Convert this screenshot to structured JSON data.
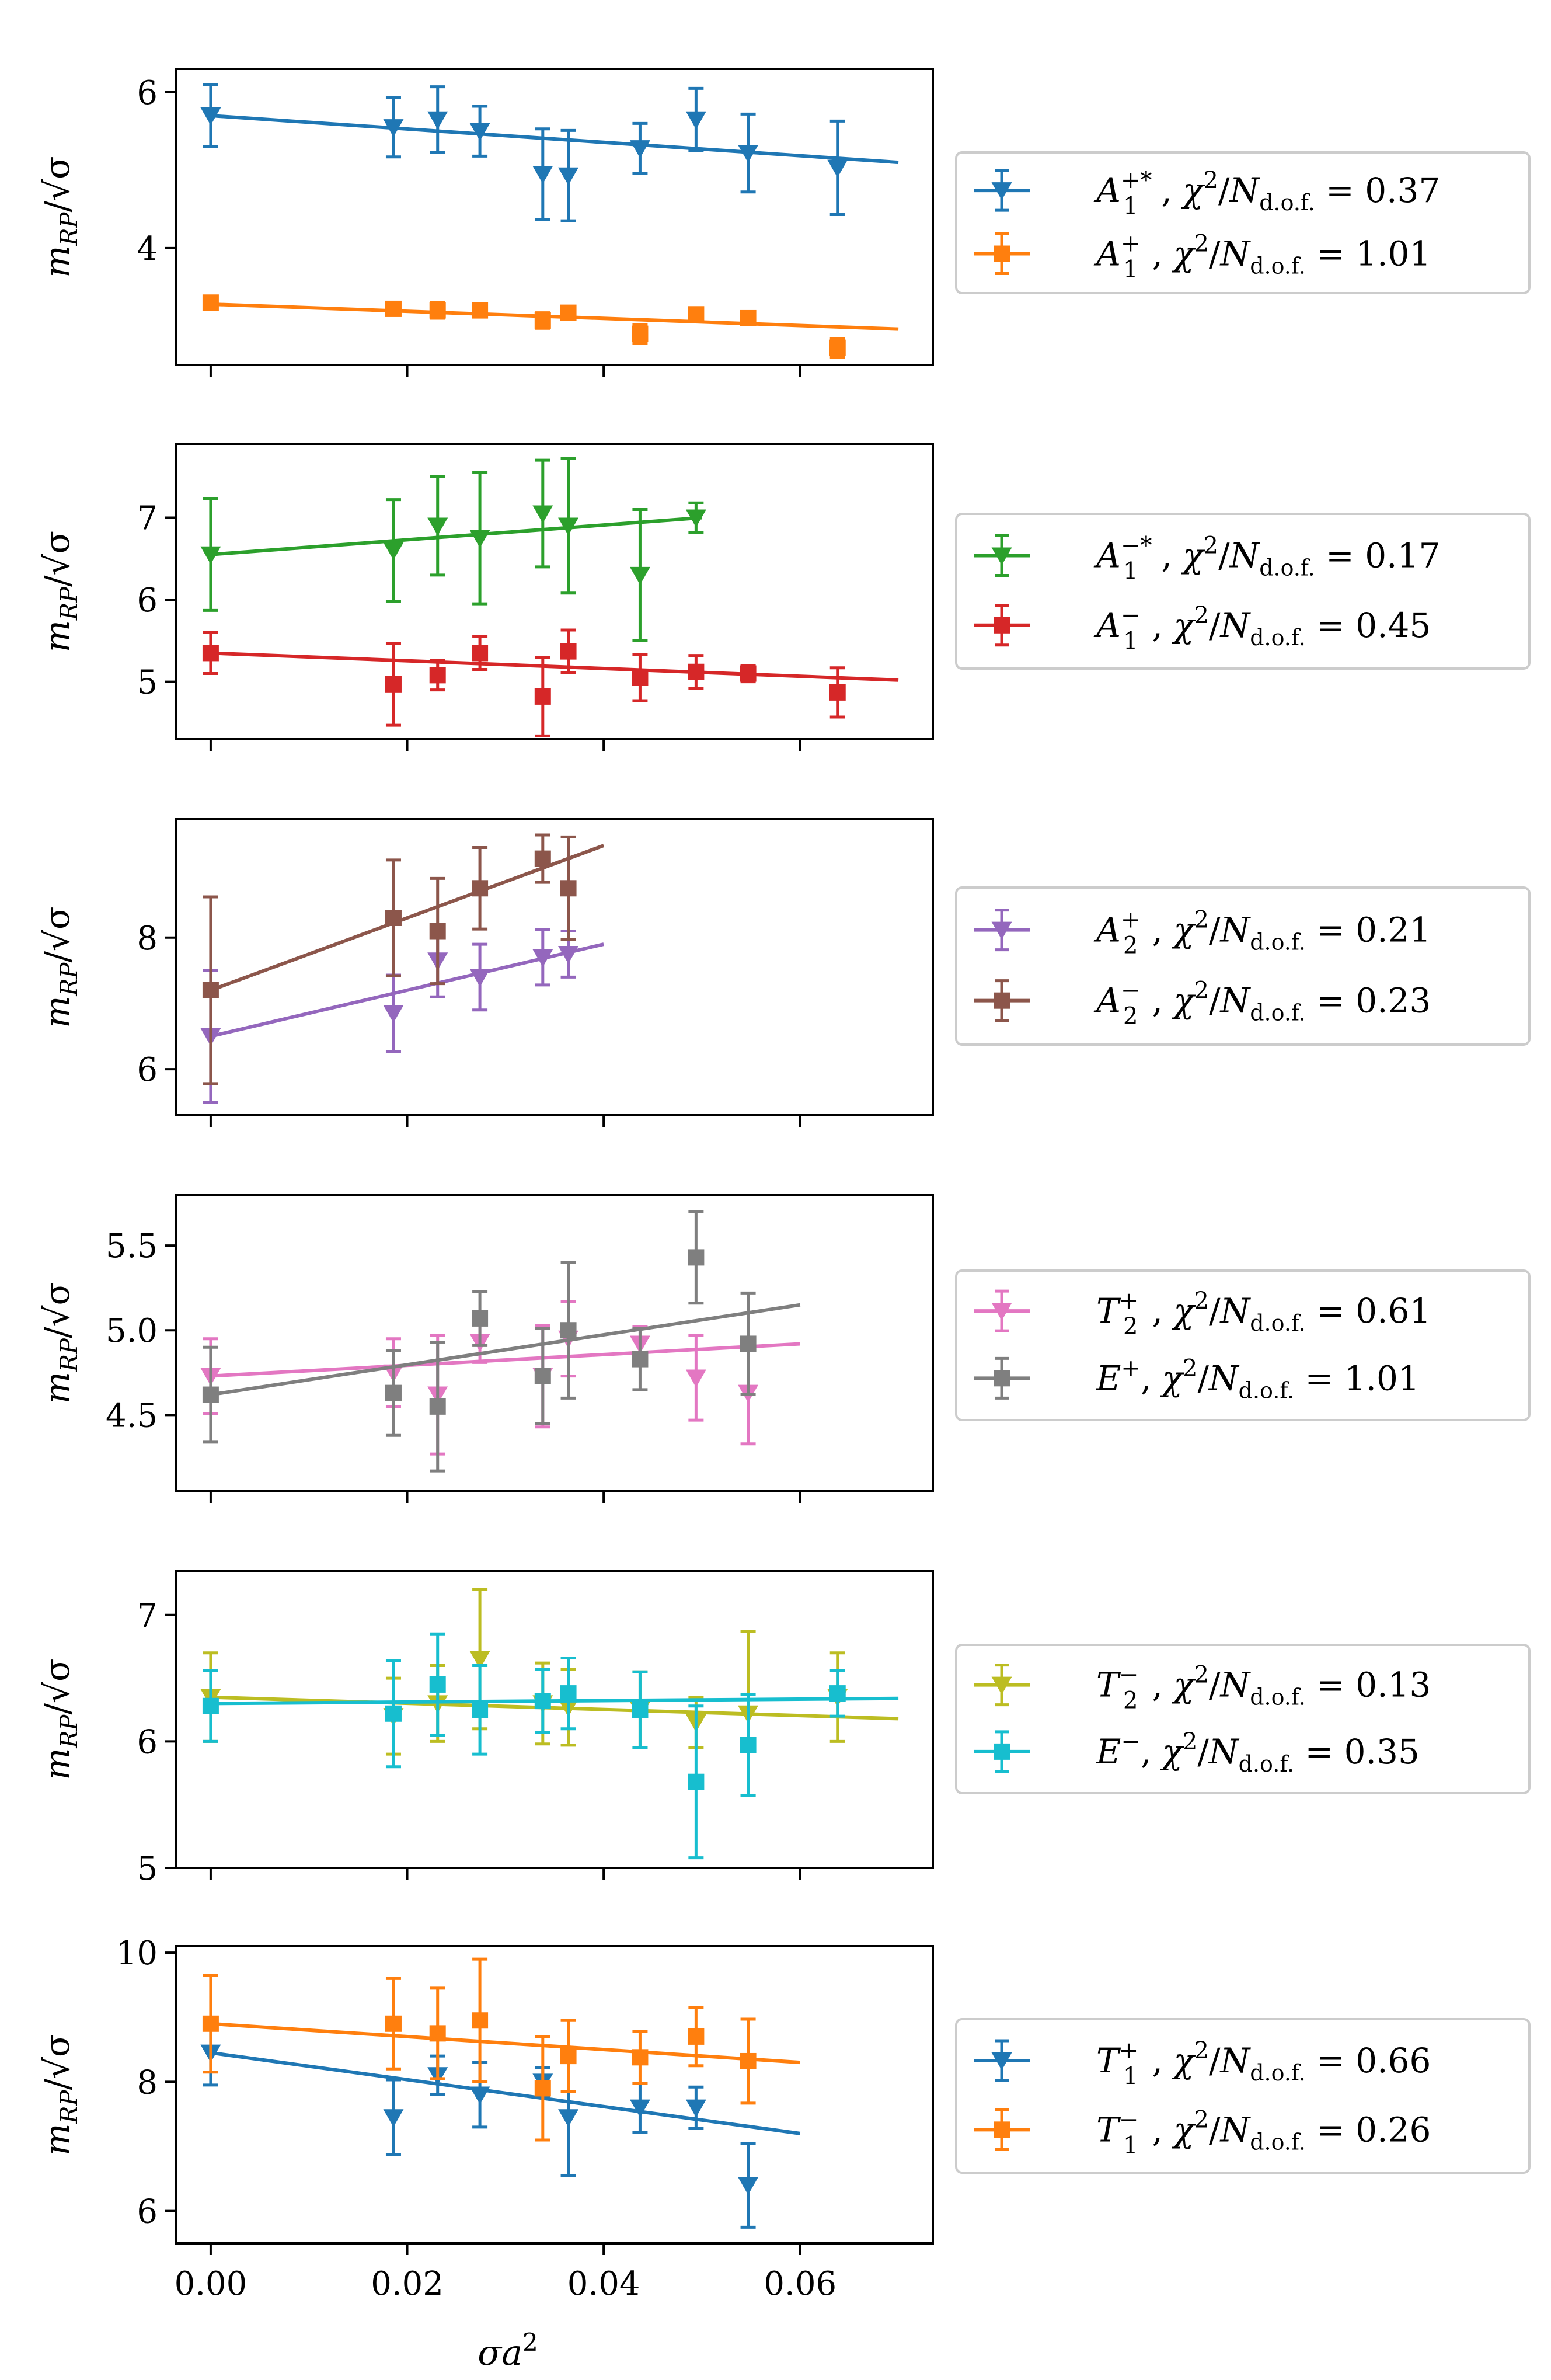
{
  "figure": {
    "xlabel": "σa²",
    "ylabel": "m_RP / √σ",
    "x_ticks": [
      0.0,
      0.02,
      0.04,
      0.06
    ],
    "x_tick_labels": [
      "0.00",
      "0.02",
      "0.04",
      "0.06"
    ]
  },
  "colors": {
    "blue": "#1f77b4",
    "orange": "#ff7f0e",
    "green": "#2ca02c",
    "red": "#d62728",
    "purple": "#9467bd",
    "brown": "#8c564b",
    "pink": "#e377c2",
    "gray": "#7f7f7f",
    "olive": "#bcbd22",
    "cyan": "#17becf"
  },
  "chart_data": [
    {
      "type": "scatter",
      "panel": 1,
      "xlim": [
        -0.0035,
        0.0735
      ],
      "ylim": [
        2.5,
        6.3
      ],
      "yticks": [
        4,
        6
      ],
      "ytick_labels": [
        "4",
        "6"
      ],
      "series": [
        {
          "name": "A1+*",
          "legend": {
            "base": "A",
            "sub": "1",
            "sup": "+*",
            "chi_value": "0.37"
          },
          "color": "#1f77b4",
          "marker": "triangle-down",
          "x": [
            0.0,
            0.0186,
            0.0231,
            0.0274,
            0.0338,
            0.0364,
            0.0437,
            0.0494,
            0.0547,
            0.0638
          ],
          "y": [
            5.7,
            5.55,
            5.65,
            5.5,
            4.95,
            4.93,
            5.28,
            5.65,
            5.22,
            5.03
          ],
          "err": [
            0.4,
            0.38,
            0.42,
            0.32,
            0.58,
            0.58,
            0.32,
            0.4,
            0.5,
            0.6
          ],
          "fit": {
            "x": [
              0.0,
              0.07
            ],
            "y": [
              5.7,
              5.1
            ]
          }
        },
        {
          "name": "A1+",
          "legend": {
            "base": "A",
            "sub": "1",
            "sup": "+",
            "chi_value": "1.01"
          },
          "color": "#ff7f0e",
          "marker": "square",
          "x": [
            0.0,
            0.0186,
            0.0231,
            0.0274,
            0.0338,
            0.0364,
            0.0437,
            0.0494,
            0.0547,
            0.0638
          ],
          "y": [
            3.3,
            3.22,
            3.2,
            3.2,
            3.07,
            3.17,
            2.9,
            3.15,
            3.1,
            2.72
          ],
          "err": [
            0.06,
            0.07,
            0.1,
            0.08,
            0.1,
            0.08,
            0.12,
            0.08,
            0.08,
            0.12
          ],
          "fit": {
            "x": [
              0.0,
              0.07
            ],
            "y": [
              3.28,
              2.96
            ]
          }
        }
      ]
    },
    {
      "type": "scatter",
      "panel": 2,
      "xlim": [
        -0.0035,
        0.0735
      ],
      "ylim": [
        4.3,
        7.9
      ],
      "yticks": [
        5,
        6,
        7
      ],
      "ytick_labels": [
        "5",
        "6",
        "7"
      ],
      "series": [
        {
          "name": "A1-*",
          "legend": {
            "base": "A",
            "sub": "1",
            "sup": "−*",
            "chi_value": "0.17"
          },
          "color": "#2ca02c",
          "marker": "triangle-down",
          "x": [
            0.0,
            0.0186,
            0.0231,
            0.0274,
            0.0338,
            0.0364,
            0.0437,
            0.0494
          ],
          "y": [
            6.55,
            6.6,
            6.9,
            6.75,
            7.05,
            6.9,
            6.3,
            7.0
          ],
          "err": [
            0.68,
            0.62,
            0.6,
            0.8,
            0.65,
            0.82,
            0.8,
            0.18
          ],
          "fit": {
            "x": [
              0.0,
              0.05
            ],
            "y": [
              6.55,
              7.0
            ]
          }
        },
        {
          "name": "A1-",
          "legend": {
            "base": "A",
            "sub": "1",
            "sup": "−",
            "chi_value": "0.45"
          },
          "color": "#d62728",
          "marker": "square",
          "x": [
            0.0,
            0.0186,
            0.0231,
            0.0274,
            0.0338,
            0.0364,
            0.0437,
            0.0494,
            0.0547,
            0.0638
          ],
          "y": [
            5.35,
            4.97,
            5.08,
            5.35,
            4.82,
            5.37,
            5.05,
            5.12,
            5.1,
            4.87
          ],
          "err": [
            0.25,
            0.5,
            0.18,
            0.2,
            0.48,
            0.26,
            0.28,
            0.2,
            0.1,
            0.3
          ],
          "fit": {
            "x": [
              0.0,
              0.07
            ],
            "y": [
              5.35,
              5.02
            ]
          }
        }
      ]
    },
    {
      "type": "scatter",
      "panel": 3,
      "xlim": [
        -0.0035,
        0.0735
      ],
      "ylim": [
        5.3,
        9.8
      ],
      "yticks": [
        6,
        8
      ],
      "ytick_labels": [
        "6",
        "8"
      ],
      "series": [
        {
          "name": "A2+",
          "legend": {
            "base": "A",
            "sub": "2",
            "sup": "+",
            "chi_value": "0.21"
          },
          "color": "#9467bd",
          "marker": "triangle-down",
          "x": [
            0.0,
            0.0186,
            0.0231,
            0.0274,
            0.0338,
            0.0364
          ],
          "y": [
            6.5,
            6.85,
            7.65,
            7.4,
            7.7,
            7.75
          ],
          "err": [
            1.0,
            0.58,
            0.55,
            0.5,
            0.42,
            0.35
          ],
          "fit": {
            "x": [
              0.0,
              0.04
            ],
            "y": [
              6.5,
              7.9
            ]
          }
        },
        {
          "name": "A2-",
          "legend": {
            "base": "A",
            "sub": "2",
            "sup": "−",
            "chi_value": "0.23"
          },
          "color": "#8c564b",
          "marker": "square",
          "x": [
            0.0,
            0.0186,
            0.0231,
            0.0274,
            0.0338,
            0.0364
          ],
          "y": [
            7.2,
            8.3,
            8.1,
            8.75,
            9.2,
            8.75
          ],
          "err": [
            1.42,
            0.88,
            0.8,
            0.62,
            0.36,
            0.78
          ],
          "fit": {
            "x": [
              0.0,
              0.04
            ],
            "y": [
              7.2,
              9.4
            ]
          }
        }
      ]
    },
    {
      "type": "scatter",
      "panel": 4,
      "xlim": [
        -0.0035,
        0.0735
      ],
      "ylim": [
        4.05,
        5.8
      ],
      "yticks": [
        4.5,
        5.0,
        5.5
      ],
      "ytick_labels": [
        "4.5",
        "5.0",
        "5.5"
      ],
      "series": [
        {
          "name": "T2+",
          "legend": {
            "base": "T",
            "sub": "2",
            "sup": "+",
            "chi_value": "0.61"
          },
          "color": "#e377c2",
          "marker": "triangle-down",
          "x": [
            0.0,
            0.0186,
            0.0231,
            0.0274,
            0.0338,
            0.0364,
            0.0437,
            0.0494,
            0.0547
          ],
          "y": [
            4.73,
            4.75,
            4.62,
            4.93,
            4.73,
            4.95,
            4.92,
            4.72,
            4.63
          ],
          "err": [
            0.22,
            0.2,
            0.35,
            0.12,
            0.3,
            0.22,
            0.1,
            0.25,
            0.3
          ],
          "fit": {
            "x": [
              0.0,
              0.06
            ],
            "y": [
              4.73,
              4.92
            ]
          }
        },
        {
          "name": "E+",
          "legend": {
            "base": "E",
            "sub": "",
            "sup": "+",
            "chi_value": "1.01"
          },
          "color": "#7f7f7f",
          "marker": "square",
          "x": [
            0.0,
            0.0186,
            0.0231,
            0.0274,
            0.0338,
            0.0364,
            0.0437,
            0.0494,
            0.0547
          ],
          "y": [
            4.62,
            4.63,
            4.55,
            5.07,
            4.73,
            5.0,
            4.83,
            5.43,
            4.92
          ],
          "err": [
            0.28,
            0.25,
            0.38,
            0.16,
            0.28,
            0.4,
            0.18,
            0.27,
            0.3
          ],
          "fit": {
            "x": [
              0.0,
              0.06
            ],
            "y": [
              4.62,
              5.15
            ]
          }
        }
      ]
    },
    {
      "type": "scatter",
      "panel": 5,
      "xlim": [
        -0.0035,
        0.0735
      ],
      "ylim": [
        5.0,
        7.35
      ],
      "yticks": [
        5,
        6,
        7
      ],
      "ytick_labels": [
        "5",
        "6",
        "7"
      ],
      "series": [
        {
          "name": "T2-",
          "legend": {
            "base": "T",
            "sub": "2",
            "sup": "−",
            "chi_value": "0.13"
          },
          "color": "#bcbd22",
          "marker": "triangle-down",
          "x": [
            0.0,
            0.0186,
            0.0231,
            0.0274,
            0.0338,
            0.0364,
            0.0437,
            0.0494,
            0.0547,
            0.0638
          ],
          "y": [
            6.35,
            6.2,
            6.3,
            6.65,
            6.3,
            6.27,
            6.25,
            6.15,
            6.22,
            6.35
          ],
          "err": [
            0.35,
            0.3,
            0.3,
            0.55,
            0.32,
            0.3,
            0.3,
            0.2,
            0.65,
            0.35
          ],
          "fit": {
            "x": [
              0.0,
              0.07
            ],
            "y": [
              6.35,
              6.18
            ]
          }
        },
        {
          "name": "E-",
          "legend": {
            "base": "E",
            "sub": "",
            "sup": "−",
            "chi_value": "0.35"
          },
          "color": "#17becf",
          "marker": "square",
          "x": [
            0.0,
            0.0186,
            0.0231,
            0.0274,
            0.0338,
            0.0364,
            0.0437,
            0.0494,
            0.0547,
            0.0638
          ],
          "y": [
            6.28,
            6.22,
            6.45,
            6.25,
            6.32,
            6.38,
            6.25,
            5.68,
            5.97,
            6.38
          ],
          "err": [
            0.28,
            0.42,
            0.4,
            0.35,
            0.25,
            0.28,
            0.3,
            0.6,
            0.4,
            0.18
          ],
          "fit": {
            "x": [
              0.0,
              0.07
            ],
            "y": [
              6.3,
              6.34
            ]
          }
        }
      ]
    },
    {
      "type": "scatter",
      "panel": 6,
      "xlim": [
        -0.0035,
        0.0735
      ],
      "ylim": [
        5.5,
        10.1
      ],
      "yticks": [
        6,
        8,
        10
      ],
      "ytick_labels": [
        "6",
        "8",
        "10"
      ],
      "series": [
        {
          "name": "T1+",
          "legend": {
            "base": "T",
            "sub": "1",
            "sup": "+",
            "chi_value": "0.66"
          },
          "color": "#1f77b4",
          "marker": "triangle-down",
          "x": [
            0.0,
            0.0186,
            0.0231,
            0.0274,
            0.0338,
            0.0364,
            0.0437,
            0.0494,
            0.0547
          ],
          "y": [
            8.45,
            7.45,
            8.1,
            7.8,
            8.0,
            7.45,
            7.6,
            7.6,
            6.4
          ],
          "err": [
            0.5,
            0.58,
            0.3,
            0.5,
            0.22,
            0.9,
            0.38,
            0.32,
            0.65
          ],
          "fit": {
            "x": [
              0.0,
              0.06
            ],
            "y": [
              8.45,
              7.2
            ]
          }
        },
        {
          "name": "T1-",
          "legend": {
            "base": "T",
            "sub": "1",
            "sup": "−",
            "chi_value": "0.26"
          },
          "color": "#ff7f0e",
          "marker": "square",
          "x": [
            0.0,
            0.0186,
            0.0231,
            0.0274,
            0.0338,
            0.0364,
            0.0437,
            0.0494,
            0.0547
          ],
          "y": [
            8.9,
            8.9,
            8.75,
            8.95,
            7.9,
            8.4,
            8.38,
            8.7,
            8.32
          ],
          "err": [
            0.75,
            0.7,
            0.7,
            0.95,
            0.8,
            0.55,
            0.4,
            0.45,
            0.65
          ],
          "fit": {
            "x": [
              0.0,
              0.06
            ],
            "y": [
              8.9,
              8.3
            ]
          }
        }
      ]
    }
  ]
}
